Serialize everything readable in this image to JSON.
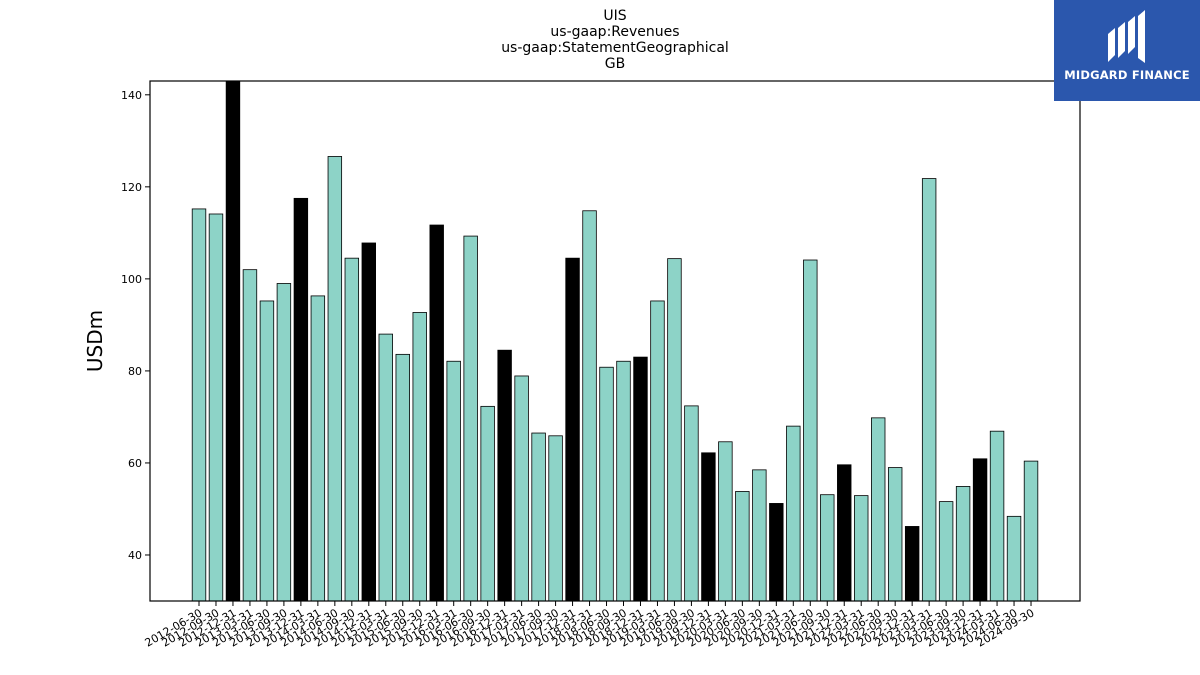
{
  "logo": {
    "text": "MIDGARD FINANCE",
    "background": "#2b57ad"
  },
  "chart_data": {
    "type": "bar",
    "title_lines": [
      "UIS",
      "us-gaap:Revenues",
      "us-gaap:StatementGeographical",
      "GB"
    ],
    "xlabel": "",
    "ylabel": "USDm",
    "ylim": [
      30,
      143
    ],
    "yticks": [
      40,
      60,
      80,
      100,
      120,
      140
    ],
    "grid": false,
    "colors": {
      "regular": "#8dd3c7",
      "year_end": "#000000",
      "edge": "#000000"
    },
    "categories": [
      "2012-06-30",
      "2012-09-30",
      "2012-12-31",
      "2013-03-31",
      "2013-06-30",
      "2013-09-30",
      "2013-12-31",
      "2014-03-31",
      "2014-06-30",
      "2014-09-30",
      "2014-12-31",
      "2015-03-31",
      "2015-06-30",
      "2015-09-30",
      "2015-12-31",
      "2016-03-31",
      "2016-06-30",
      "2016-09-30",
      "2016-12-31",
      "2017-03-31",
      "2017-06-30",
      "2017-09-30",
      "2017-12-31",
      "2018-03-31",
      "2018-06-30",
      "2018-09-30",
      "2018-12-31",
      "2019-03-31",
      "2019-06-30",
      "2019-09-30",
      "2019-12-31",
      "2020-03-31",
      "2020-06-30",
      "2020-09-30",
      "2020-12-31",
      "2021-03-31",
      "2021-06-30",
      "2021-09-30",
      "2021-12-31",
      "2022-03-31",
      "2022-06-30",
      "2022-09-30",
      "2022-12-31",
      "2023-03-31",
      "2023-06-30",
      "2023-09-30",
      "2023-12-31",
      "2024-03-31",
      "2024-06-30",
      "2024-09-30"
    ],
    "values": [
      115.2,
      114.1,
      143.0,
      102.0,
      95.2,
      99.0,
      117.5,
      96.3,
      126.6,
      104.5,
      107.8,
      88.0,
      83.6,
      92.7,
      111.7,
      82.1,
      109.3,
      72.3,
      84.5,
      78.9,
      66.5,
      65.9,
      104.5,
      114.8,
      80.8,
      82.1,
      83.0,
      95.2,
      104.4,
      72.4,
      62.2,
      64.6,
      53.8,
      58.5,
      51.2,
      68.0,
      104.1,
      53.1,
      59.6,
      52.9,
      69.8,
      59.0,
      46.2,
      121.8,
      51.6,
      54.9,
      60.9,
      66.9,
      48.4,
      60.4
    ],
    "year_end_flags": [
      false,
      false,
      true,
      false,
      false,
      false,
      true,
      false,
      false,
      false,
      true,
      false,
      false,
      false,
      true,
      false,
      false,
      false,
      true,
      false,
      false,
      false,
      true,
      false,
      false,
      false,
      true,
      false,
      false,
      false,
      true,
      false,
      false,
      false,
      true,
      false,
      false,
      false,
      true,
      false,
      false,
      false,
      true,
      false,
      false,
      false,
      true,
      false,
      false,
      false
    ]
  }
}
